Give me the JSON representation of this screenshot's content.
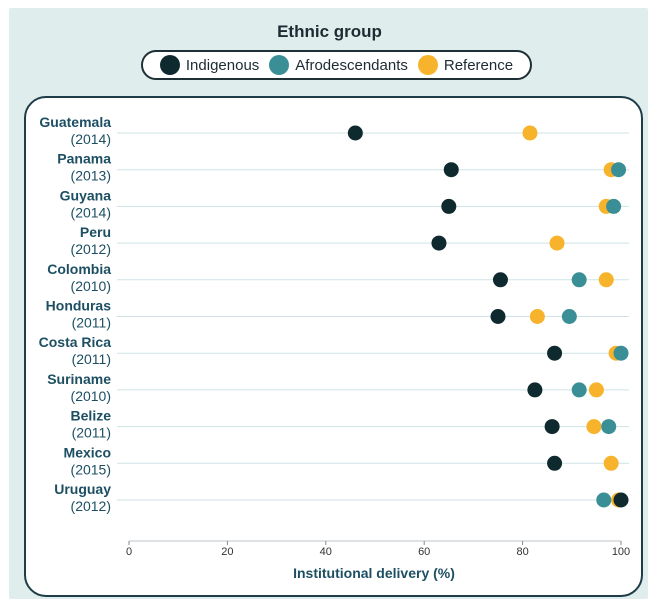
{
  "chart_data": {
    "type": "scatter",
    "title": "",
    "legend_title": "Ethnic group",
    "xlabel": "Institutional delivery (%)",
    "xlim": [
      0,
      100
    ],
    "xticks": [
      "0",
      "20",
      "40",
      "60",
      "80",
      "100"
    ],
    "grid": "horizontal",
    "legend_position": "top-center",
    "series": [
      {
        "name": "Indigenous",
        "color": "#0f2a2e"
      },
      {
        "name": "Afrodescendants",
        "color": "#3a8f96"
      },
      {
        "name": "Reference",
        "color": "#f7b32b"
      }
    ],
    "rows": [
      {
        "country": "Guatemala",
        "year": "(2014)",
        "values": {
          "Indigenous": 46,
          "Reference": 81.5
        }
      },
      {
        "country": "Panama",
        "year": "(2013)",
        "values": {
          "Indigenous": 65.5,
          "Afrodescendants": 99.5,
          "Reference": 98
        }
      },
      {
        "country": "Guyana",
        "year": "(2014)",
        "values": {
          "Indigenous": 65,
          "Afrodescendants": 98.5,
          "Reference": 97
        }
      },
      {
        "country": "Peru",
        "year": "(2012)",
        "values": {
          "Indigenous": 63,
          "Reference": 87
        }
      },
      {
        "country": "Colombia",
        "year": "(2010)",
        "values": {
          "Indigenous": 75.5,
          "Afrodescendants": 91.5,
          "Reference": 97
        }
      },
      {
        "country": "Honduras",
        "year": "(2011)",
        "values": {
          "Indigenous": 75,
          "Afrodescendants": 89.5,
          "Reference": 83
        }
      },
      {
        "country": "Costa Rica",
        "year": "(2011)",
        "values": {
          "Indigenous": 86.5,
          "Afrodescendants": 100,
          "Reference": 99
        }
      },
      {
        "country": "Suriname",
        "year": "(2010)",
        "values": {
          "Indigenous": 82.5,
          "Afrodescendants": 91.5,
          "Reference": 95
        }
      },
      {
        "country": "Belize",
        "year": "(2011)",
        "values": {
          "Indigenous": 86,
          "Afrodescendants": 97.5,
          "Reference": 94.5
        }
      },
      {
        "country": "Mexico",
        "year": "(2015)",
        "values": {
          "Indigenous": 86.5,
          "Reference": 98
        }
      },
      {
        "country": "Uruguay",
        "year": "(2012)",
        "values": {
          "Indigenous": 100,
          "Afrodescendants": 96.5,
          "Reference": 99.5
        }
      }
    ]
  }
}
